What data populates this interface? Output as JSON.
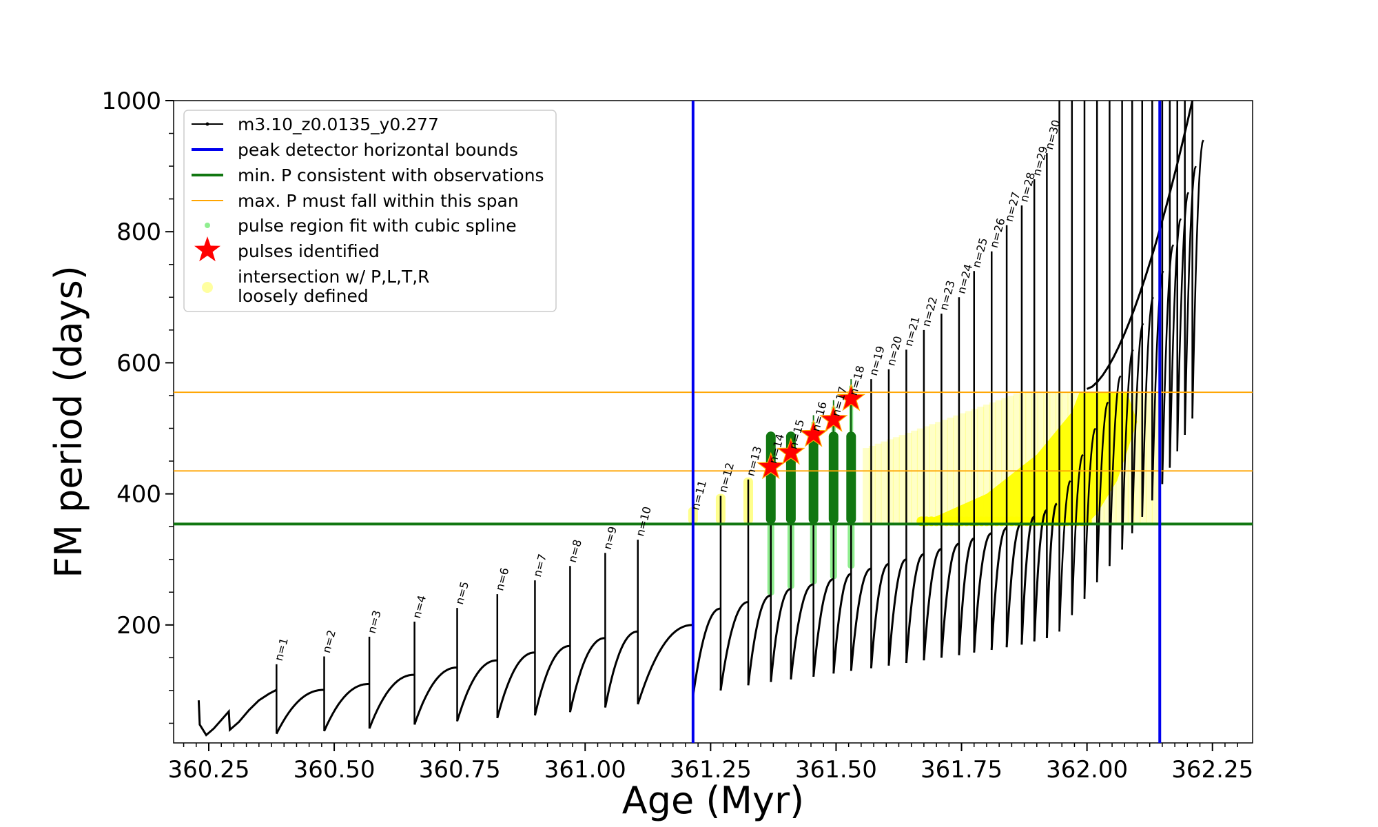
{
  "chart_data": {
    "type": "line",
    "xlabel": "Age (Myr)",
    "ylabel": "FM period (days)",
    "xlim": [
      360.18,
      362.33
    ],
    "ylim": [
      20,
      1000
    ],
    "xticks": [
      360.25,
      360.5,
      360.75,
      361.0,
      361.25,
      361.5,
      361.75,
      362.0,
      362.25
    ],
    "xtick_labels": [
      "360.25",
      "360.50",
      "360.75",
      "361.00",
      "361.25",
      "361.50",
      "361.75",
      "362.00",
      "362.25"
    ],
    "yticks": [
      200,
      400,
      600,
      800,
      1000
    ],
    "ytick_labels": [
      "200",
      "400",
      "600",
      "800",
      "1000"
    ],
    "grid": false,
    "legend_position": "top-left",
    "legend": [
      {
        "label": "m3.10_z0.0135_y0.277",
        "color": "#000000",
        "kind": "line-marker"
      },
      {
        "label": "peak detector horizontal bounds",
        "color": "#0000ee",
        "kind": "line"
      },
      {
        "label": "min. P consistent with observations",
        "color": "#117711",
        "kind": "line"
      },
      {
        "label": "max. P must fall within this span",
        "color": "#ffa500",
        "kind": "thin-line"
      },
      {
        "label": "pulse region fit with cubic spline",
        "color": "#90ee90",
        "kind": "dot"
      },
      {
        "label": "pulses identified",
        "color": "#ff0000",
        "kind": "star"
      },
      {
        "label": "intersection w/ P,L,T,R",
        "label2": "loosely defined",
        "color": "#ffff88",
        "kind": "circle"
      }
    ],
    "colors": {
      "track": "#000000",
      "bounds": "#0000ee",
      "min_p": "#117711",
      "max_p_span": "#ffa500",
      "spline": "#90ee90",
      "spline_dark": "#117711",
      "stars": "#ff0000",
      "intersection": "#ffff00"
    },
    "vertical_bounds": [
      361.215,
      362.145
    ],
    "min_p": 354,
    "max_p_span": [
      435,
      555
    ],
    "pulses": [
      {
        "label": "n=1",
        "age": 360.385,
        "peak": 140,
        "dip": 34,
        "plateau": 101
      },
      {
        "label": "n=2",
        "age": 360.48,
        "peak": 152,
        "dip": 38,
        "plateau": 110
      },
      {
        "label": "n=3",
        "age": 360.57,
        "peak": 182,
        "dip": 42,
        "plateau": 124
      },
      {
        "label": "n=4",
        "age": 360.66,
        "peak": 205,
        "dip": 48,
        "plateau": 135
      },
      {
        "label": "n=5",
        "age": 360.745,
        "peak": 226,
        "dip": 53,
        "plateau": 146
      },
      {
        "label": "n=6",
        "age": 360.825,
        "peak": 247,
        "dip": 58,
        "plateau": 158
      },
      {
        "label": "n=7",
        "age": 360.9,
        "peak": 268,
        "dip": 62,
        "plateau": 168
      },
      {
        "label": "n=8",
        "age": 360.97,
        "peak": 290,
        "dip": 67,
        "plateau": 180
      },
      {
        "label": "n=9",
        "age": 361.04,
        "peak": 310,
        "dip": 74,
        "plateau": 190
      },
      {
        "label": "n=10",
        "age": 361.105,
        "peak": 330,
        "dip": 79,
        "plateau": 200
      },
      {
        "label": "n=11",
        "age": 361.215,
        "peak": 370,
        "dip": 92,
        "plateau": 225
      },
      {
        "label": "n=12",
        "age": 361.27,
        "peak": 397,
        "dip": 100,
        "plateau": 235
      },
      {
        "label": "n=13",
        "age": 361.325,
        "peak": 422,
        "dip": 108,
        "plateau": 245
      },
      {
        "label": "n=14",
        "age": 361.37,
        "peak": 441,
        "dip": 113,
        "plateau": 255
      },
      {
        "label": "n=15",
        "age": 361.41,
        "peak": 463,
        "dip": 117,
        "plateau": 262
      },
      {
        "label": "n=16",
        "age": 361.455,
        "peak": 490,
        "dip": 121,
        "plateau": 270
      },
      {
        "label": "n=17",
        "age": 361.495,
        "peak": 513,
        "dip": 126,
        "plateau": 278
      },
      {
        "label": "n=18",
        "age": 361.53,
        "peak": 545,
        "dip": 130,
        "plateau": 286
      },
      {
        "label": "n=19",
        "age": 361.57,
        "peak": 575,
        "dip": 134,
        "plateau": 293
      },
      {
        "label": "n=20",
        "age": 361.605,
        "peak": 590,
        "dip": 138,
        "plateau": 300
      },
      {
        "label": "n=21",
        "age": 361.64,
        "peak": 620,
        "dip": 142,
        "plateau": 308
      },
      {
        "label": "n=22",
        "age": 361.675,
        "peak": 650,
        "dip": 146,
        "plateau": 316
      },
      {
        "label": "n=23",
        "age": 361.71,
        "peak": 675,
        "dip": 150,
        "plateau": 324
      },
      {
        "label": "n=24",
        "age": 361.745,
        "peak": 700,
        "dip": 154,
        "plateau": 332
      },
      {
        "label": "n=25",
        "age": 361.775,
        "peak": 740,
        "dip": 158,
        "plateau": 340
      },
      {
        "label": "n=26",
        "age": 361.81,
        "peak": 770,
        "dip": 162,
        "plateau": 348
      },
      {
        "label": "n=27",
        "age": 361.84,
        "peak": 810,
        "dip": 166,
        "plateau": 356
      },
      {
        "label": "n=28",
        "age": 361.87,
        "peak": 840,
        "dip": 170,
        "plateau": 365
      },
      {
        "label": "n=29",
        "age": 361.895,
        "peak": 880,
        "dip": 175,
        "plateau": 375
      },
      {
        "label": "n=30",
        "age": 361.92,
        "peak": 920,
        "dip": 180,
        "plateau": 385
      }
    ],
    "initial_track": [
      [
        360.23,
        85
      ],
      [
        360.232,
        48
      ],
      [
        360.245,
        32
      ],
      [
        360.26,
        42
      ],
      [
        360.275,
        55
      ],
      [
        360.29,
        68
      ],
      [
        360.292,
        40
      ],
      [
        360.31,
        52
      ],
      [
        360.33,
        70
      ],
      [
        360.35,
        85
      ],
      [
        360.37,
        95
      ],
      [
        360.385,
        101
      ]
    ],
    "late_pulse_ages": [
      361.945,
      361.97,
      361.995,
      362.02,
      362.045,
      362.07,
      362.09,
      362.11,
      362.13,
      362.15,
      362.165,
      362.18,
      362.195,
      362.21
    ],
    "stars": [
      {
        "age": 361.37,
        "period": 441
      },
      {
        "age": 361.41,
        "period": 463
      },
      {
        "age": 361.455,
        "period": 490
      },
      {
        "age": 361.495,
        "period": 513
      },
      {
        "age": 361.53,
        "period": 545
      }
    ],
    "green_spline_ages": [
      361.37,
      361.41,
      361.455,
      361.495,
      361.53
    ],
    "green_spline_top": 495,
    "green_spline_bottom": 354,
    "light_green_bottoms": [
      245,
      255,
      262,
      270,
      286
    ]
  }
}
